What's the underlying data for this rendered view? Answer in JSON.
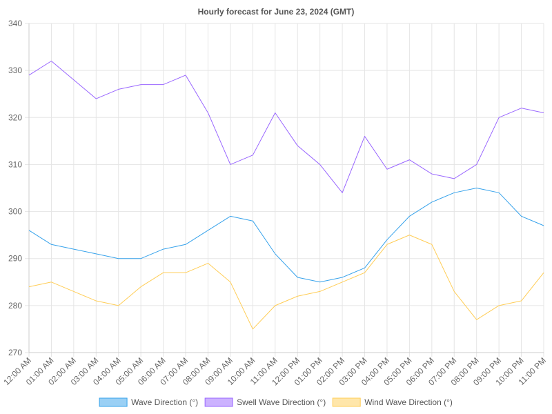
{
  "chart_data": {
    "type": "line",
    "title": "Hourly forecast for June 23, 2024 (GMT)",
    "categories": [
      "12:00 AM",
      "01:00 AM",
      "02:00 AM",
      "03:00 AM",
      "04:00 AM",
      "05:00 AM",
      "06:00 AM",
      "07:00 AM",
      "08:00 AM",
      "09:00 AM",
      "10:00 AM",
      "11:00 AM",
      "12:00 PM",
      "01:00 PM",
      "02:00 PM",
      "03:00 PM",
      "04:00 PM",
      "05:00 PM",
      "06:00 PM",
      "07:00 PM",
      "08:00 PM",
      "09:00 PM",
      "10:00 PM",
      "11:00 PM"
    ],
    "ylim": [
      270,
      340
    ],
    "yticks": [
      270,
      280,
      290,
      300,
      310,
      320,
      330,
      340
    ],
    "grid": true,
    "legend_position": "bottom",
    "series": [
      {
        "name": "Wave Direction (°)",
        "color": "#36a2eb",
        "fill": "#9ad0f5",
        "values": [
          296,
          293,
          292,
          291,
          290,
          290,
          292,
          293,
          296,
          299,
          298,
          291,
          286,
          285,
          286,
          288,
          294,
          299,
          302,
          304,
          305,
          304,
          299,
          297
        ]
      },
      {
        "name": "Swell Wave Direction (°)",
        "color": "#9966ff",
        "fill": "#ccb2ff",
        "values": [
          329,
          332,
          328,
          324,
          326,
          327,
          327,
          329,
          321,
          310,
          312,
          321,
          314,
          310,
          304,
          316,
          309,
          311,
          308,
          307,
          310,
          320,
          322,
          321
        ]
      },
      {
        "name": "Wind Wave Direction (°)",
        "color": "#ffcd56",
        "fill": "#ffe6aa",
        "values": [
          284,
          285,
          283,
          281,
          280,
          284,
          287,
          287,
          289,
          285,
          275,
          280,
          282,
          283,
          285,
          287,
          293,
          295,
          293,
          283,
          277,
          280,
          281,
          287
        ]
      }
    ]
  }
}
